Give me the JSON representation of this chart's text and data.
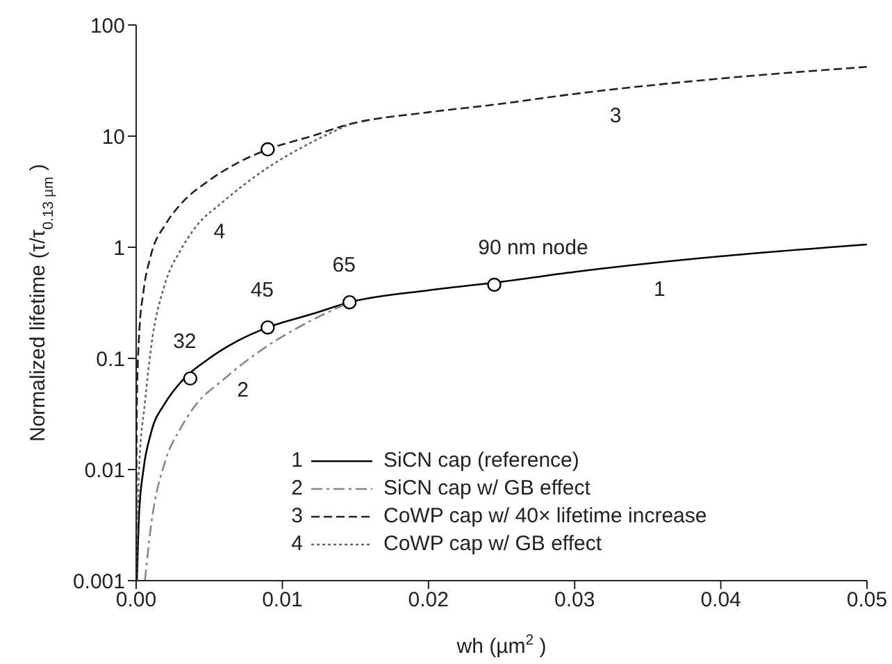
{
  "chart_data": {
    "type": "line",
    "xlabel": "wh (µm$^{2}$)",
    "ylabel": "Normalized lifetime (τ/τ$_{0.13 µm}$)",
    "log": "y",
    "xlim": [
      0,
      0.05
    ],
    "ylim": [
      0.001,
      100
    ],
    "xticks": [
      {
        "value": 0,
        "label": "0.00"
      },
      {
        "value": 0.01,
        "label": "0.01"
      },
      {
        "value": 0.02,
        "label": "0.02"
      },
      {
        "value": 0.03,
        "label": "0.03"
      },
      {
        "value": 0.04,
        "label": "0.04"
      },
      {
        "value": 0.05,
        "label": "0.05"
      }
    ],
    "yticks": [
      0.001,
      0.01,
      0.1,
      1,
      10,
      100
    ],
    "grid": false,
    "legend": "bottom right",
    "marker": "none",
    "series": [
      {
        "name": "SiCN cap (reference)",
        "color": "#000000",
        "line_style": "solid",
        "x": [
          5e-05,
          0.0002,
          0.0005,
          0.001,
          0.002,
          0.003,
          0.005,
          0.007,
          0.009,
          0.012,
          0.0146,
          0.02,
          0.0245,
          0.03,
          0.04,
          0.05
        ],
        "values": [
          0.001,
          0.004,
          0.01,
          0.021,
          0.04,
          0.06,
          0.1,
          0.145,
          0.19,
          0.25,
          0.32,
          0.41,
          0.48,
          0.6,
          0.83,
          1.06
        ]
      },
      {
        "name": "SiCN cap w/ GB effect",
        "color": "#888888",
        "line_style": "dashdot",
        "x": [
          0.0006,
          0.001,
          0.002,
          0.003,
          0.004,
          0.006,
          0.009,
          0.012,
          0.0146
        ],
        "values": [
          0.001,
          0.003,
          0.012,
          0.023,
          0.037,
          0.065,
          0.13,
          0.22,
          0.32
        ]
      },
      {
        "name": "CoWP cap w/ 40× lifetime increase",
        "color": "#222222",
        "line_style": "dashed",
        "x": [
          1.5e-06,
          5e-05,
          0.0002,
          0.0005,
          0.001,
          0.002,
          0.003,
          0.005,
          0.007,
          0.009,
          0.012,
          0.0146,
          0.02,
          0.0245,
          0.03,
          0.04,
          0.05
        ],
        "values": [
          0.001,
          0.04,
          0.16,
          0.4,
          0.84,
          1.6,
          2.4,
          4,
          5.8,
          7.6,
          10,
          12.8,
          16.4,
          19.2,
          24,
          33,
          42
        ]
      },
      {
        "name": "CoWP cap w/ GB effect",
        "color": "#666666",
        "line_style": "dotted",
        "x": [
          1.5e-06,
          0.0002,
          0.0006,
          0.001,
          0.002,
          0.003,
          0.004,
          0.006,
          0.009,
          0.012,
          0.0146
        ],
        "values": [
          0.001,
          0.01,
          0.04,
          0.12,
          0.48,
          0.92,
          1.48,
          2.6,
          5.2,
          8.8,
          12.8
        ]
      },
      {
        "type": "scatter",
        "color": "#000000",
        "marker": "circle",
        "x": [
          0.0037,
          0.009,
          0.0146,
          0.0245,
          0.009
        ],
        "values": [
          0.066,
          0.19,
          0.32,
          0.46,
          7.6
        ]
      }
    ],
    "annotations": [
      {
        "text": "32",
        "x": 0.0037,
        "y": 0.066
      },
      {
        "text": "45",
        "x": 0.009,
        "y": 0.19
      },
      {
        "text": "65",
        "x": 0.0146,
        "y": 0.32
      },
      {
        "text": "90 nm node",
        "x": 0.0245,
        "y": 0.46
      },
      {
        "text": "1",
        "x": 0.0358,
        "y": 0.73
      },
      {
        "text": "2",
        "x": 0.0073,
        "y": 0.09
      },
      {
        "text": "3",
        "x": 0.0328,
        "y": 26.5
      },
      {
        "text": "4",
        "x": 0.0057,
        "y": 2.4
      }
    ]
  }
}
